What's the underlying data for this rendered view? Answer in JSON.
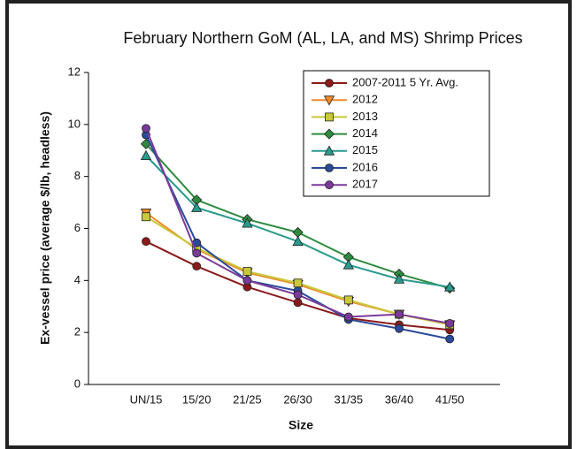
{
  "chart_data": {
    "type": "line",
    "title": "February Northern GoM (AL, LA, and MS) Shrimp Prices",
    "x_label": "Size",
    "y_label": "Ex-vessel price (average $/lb, headless)",
    "categories": [
      "UN/15",
      "15/20",
      "21/25",
      "26/30",
      "31/35",
      "36/40",
      "41/50"
    ],
    "ylim": [
      0,
      12
    ],
    "yticks": [
      0,
      2,
      4,
      6,
      8,
      10,
      12
    ],
    "series": [
      {
        "name": "2007-2011 5 Yr. Avg.",
        "color": "#8b1a1a",
        "marker": "circle",
        "values": [
          5.5,
          4.55,
          3.75,
          3.15,
          2.55,
          2.3,
          2.1
        ]
      },
      {
        "name": "2012",
        "color": "#f08a2c",
        "marker": "triangle-down",
        "values": [
          6.6,
          5.2,
          4.3,
          3.85,
          3.2,
          2.7,
          2.3
        ]
      },
      {
        "name": "2013",
        "color": "#c8c83a",
        "marker": "square",
        "values": [
          6.45,
          5.25,
          4.35,
          3.9,
          3.25,
          2.7,
          2.3
        ]
      },
      {
        "name": "2014",
        "color": "#2e8b3e",
        "marker": "diamond",
        "values": [
          9.25,
          7.1,
          6.35,
          5.85,
          4.9,
          4.25,
          3.7
        ]
      },
      {
        "name": "2015",
        "color": "#2a9a8c",
        "marker": "triangle-up",
        "values": [
          8.8,
          6.8,
          6.2,
          5.5,
          4.6,
          4.05,
          3.75
        ]
      },
      {
        "name": "2016",
        "color": "#2a4a9a",
        "marker": "circle",
        "values": [
          9.6,
          5.45,
          4.0,
          3.6,
          2.5,
          2.15,
          1.75
        ]
      },
      {
        "name": "2017",
        "color": "#7a3a9a",
        "marker": "circle",
        "values": [
          9.85,
          5.05,
          4.0,
          3.45,
          2.6,
          2.7,
          2.35
        ]
      }
    ]
  }
}
